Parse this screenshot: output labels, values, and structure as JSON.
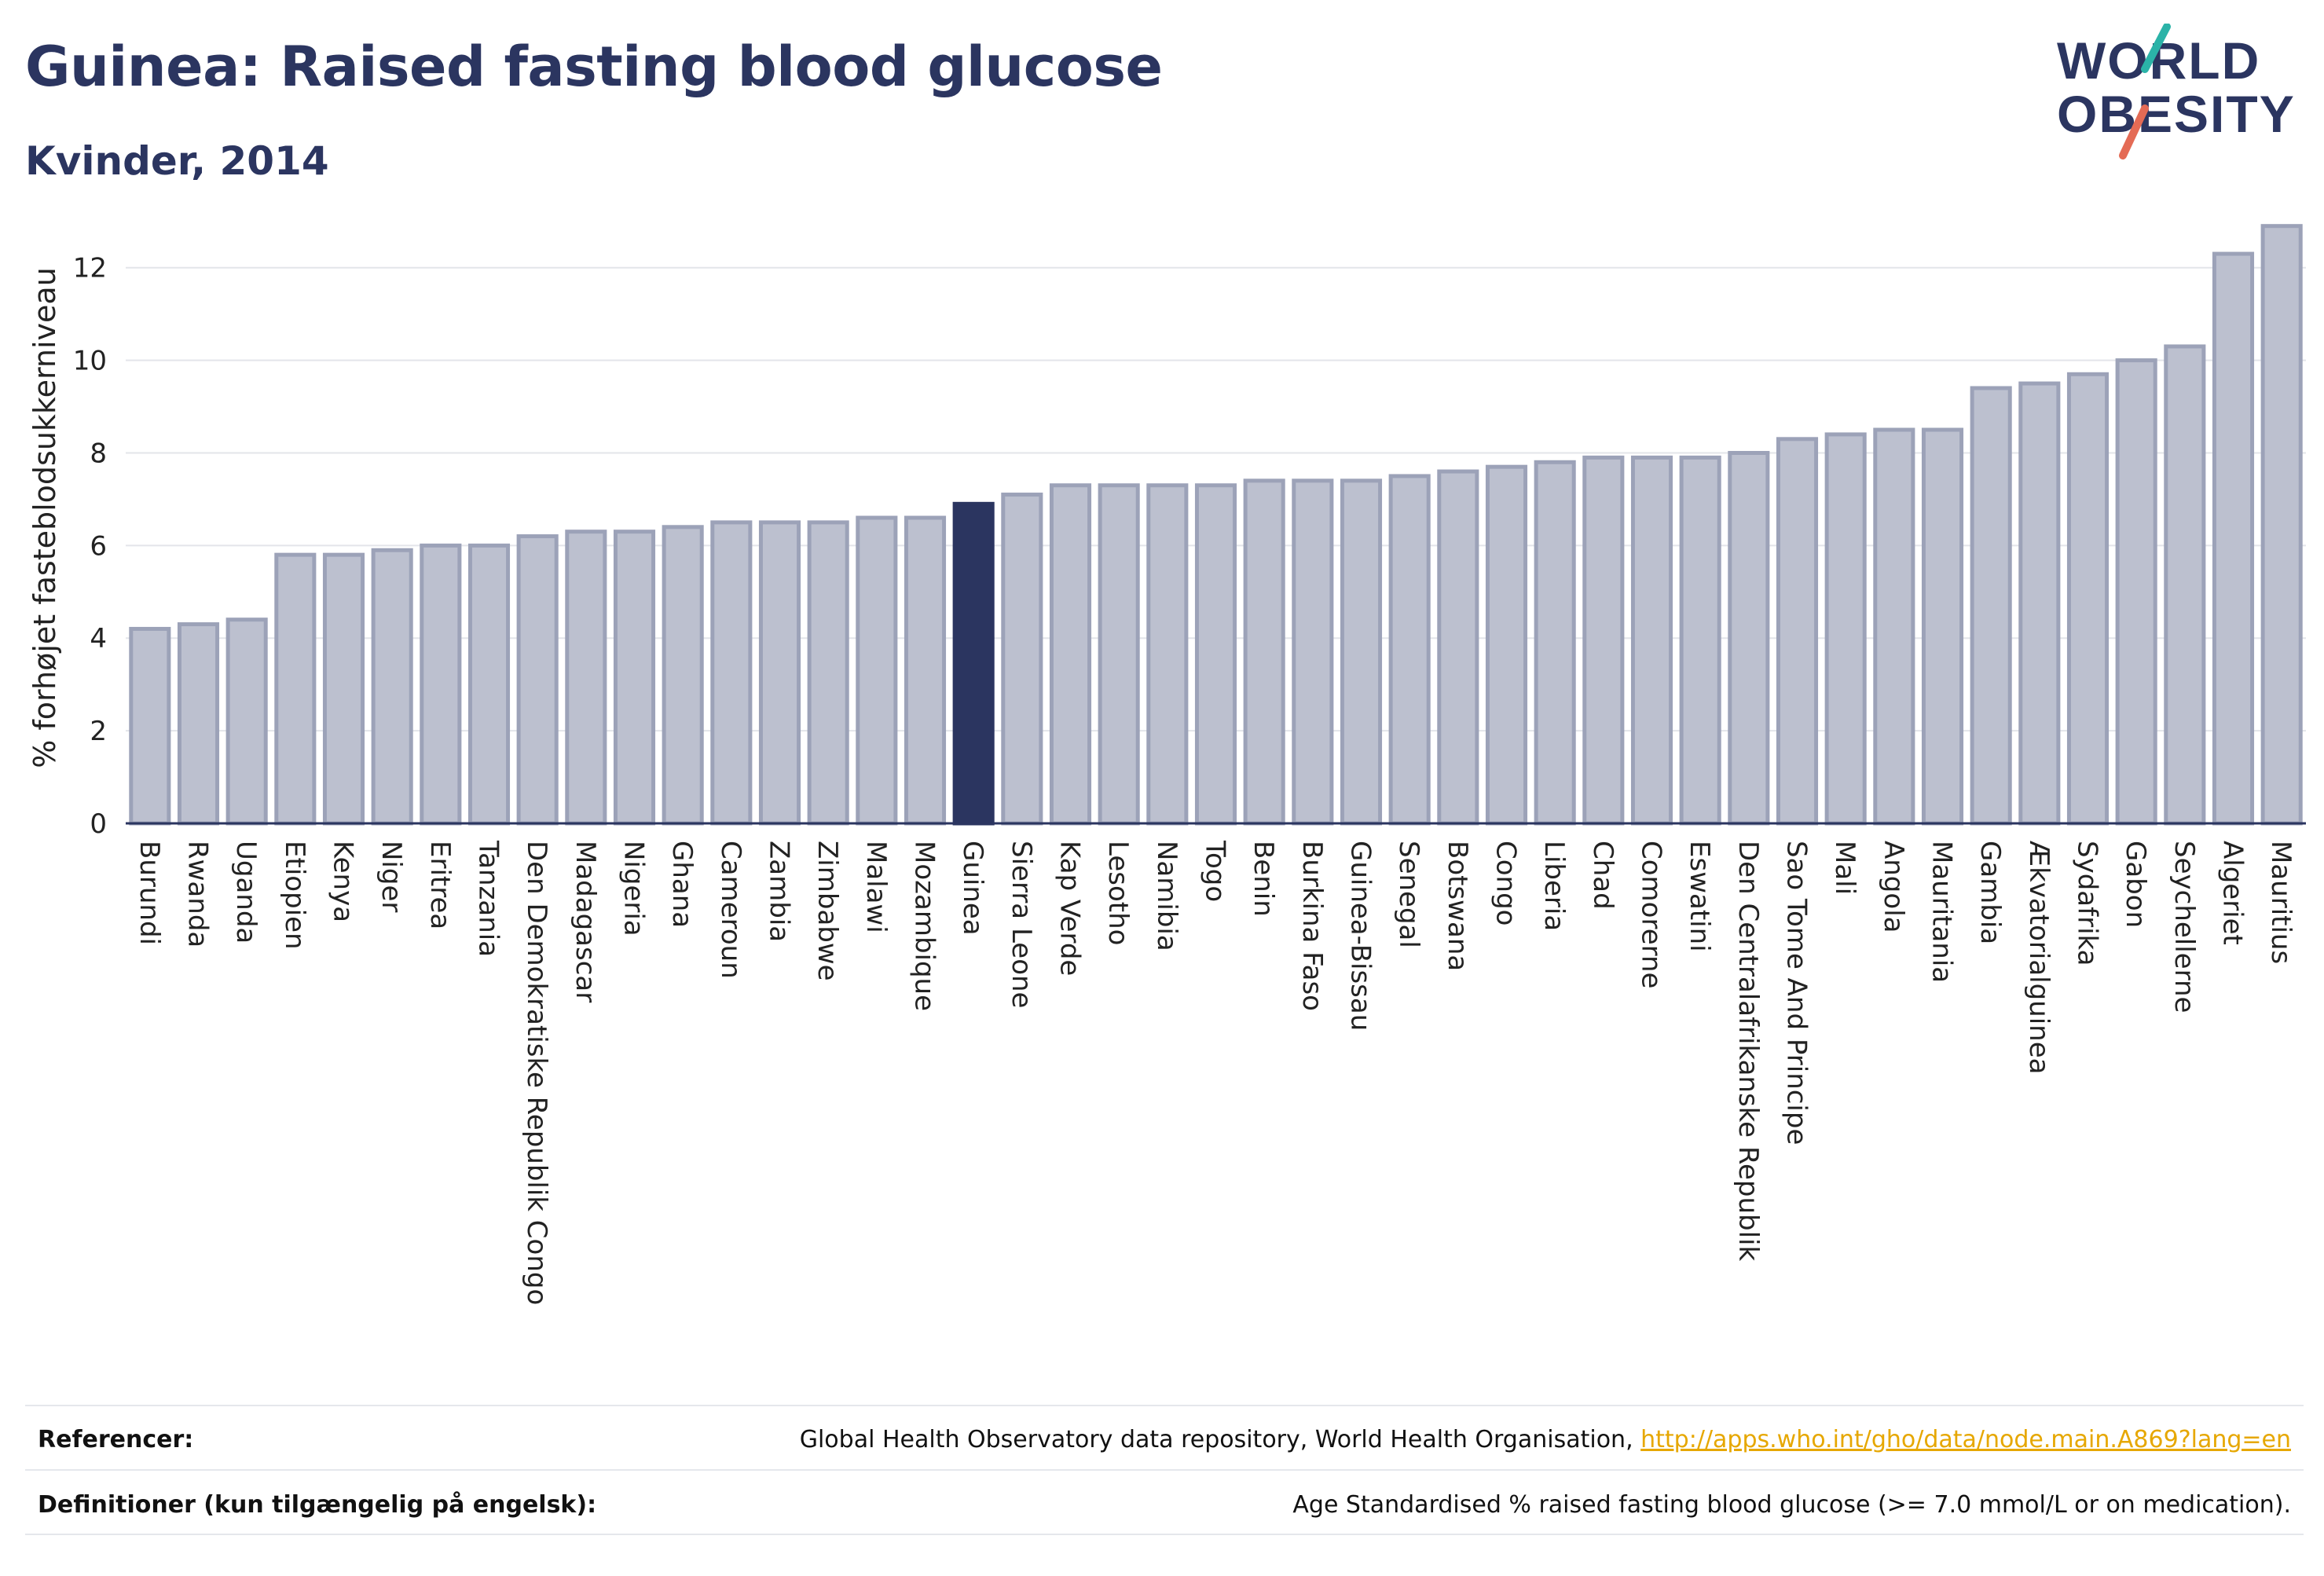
{
  "header": {
    "title": "Guinea: Raised fasting blood glucose",
    "subtitle": "Kvinder, 2014"
  },
  "logo": {
    "line1": "WORLD",
    "line2": "OBESITY"
  },
  "footer": {
    "references_label": "Referencer:",
    "references_text": "Global Health Observatory data repository, World Health Organisation, ",
    "references_link": "http://apps.who.int/gho/data/node.main.A869?lang=en",
    "definitions_label": "Definitioner (kun tilgængelig på engelsk):",
    "definitions_text": "Age Standardised % raised fasting blood glucose (>= 7.0 mmol/L or on medication)."
  },
  "colors": {
    "bar": "#bcc0cf",
    "bar_border": "#9ca2b8",
    "highlight": "#2b3560",
    "title": "#2b3560",
    "link": "#e6a700"
  },
  "chart_data": {
    "type": "bar",
    "ylabel": "% forhøjet fasteblodsukkerniveau",
    "xlabel": "",
    "ylim": [
      0,
      13.2
    ],
    "yticks": [
      0,
      2,
      4,
      6,
      8,
      10,
      12
    ],
    "grid": true,
    "highlight": "Guinea",
    "categories": [
      "Burundi",
      "Rwanda",
      "Uganda",
      "Etiopien",
      "Kenya",
      "Niger",
      "Eritrea",
      "Tanzania",
      "Den Demokratiske Republik Congo",
      "Madagascar",
      "Nigeria",
      "Ghana",
      "Cameroun",
      "Zambia",
      "Zimbabwe",
      "Malawi",
      "Mozambique",
      "Guinea",
      "Sierra Leone",
      "Kap Verde",
      "Lesotho",
      "Namibia",
      "Togo",
      "Benin",
      "Burkina Faso",
      "Guinea-Bissau",
      "Senegal",
      "Botswana",
      "Congo",
      "Liberia",
      "Chad",
      "Comorerne",
      "Eswatini",
      "Den Centralafrikanske Republik",
      "Sao Tome And Principe",
      "Mali",
      "Angola",
      "Mauritania",
      "Gambia",
      "Ækvatorialguinea",
      "Sydafrika",
      "Gabon",
      "Seychellerne",
      "Algeriet",
      "Mauritius"
    ],
    "values": [
      4.2,
      4.3,
      4.4,
      5.8,
      5.8,
      5.9,
      6.0,
      6.0,
      6.2,
      6.3,
      6.3,
      6.4,
      6.5,
      6.5,
      6.5,
      6.6,
      6.6,
      6.9,
      7.1,
      7.3,
      7.3,
      7.3,
      7.3,
      7.4,
      7.4,
      7.4,
      7.5,
      7.6,
      7.7,
      7.8,
      7.9,
      7.9,
      7.9,
      8.0,
      8.3,
      8.4,
      8.5,
      8.5,
      9.4,
      9.5,
      9.7,
      10.0,
      10.3,
      12.3,
      12.9
    ]
  }
}
